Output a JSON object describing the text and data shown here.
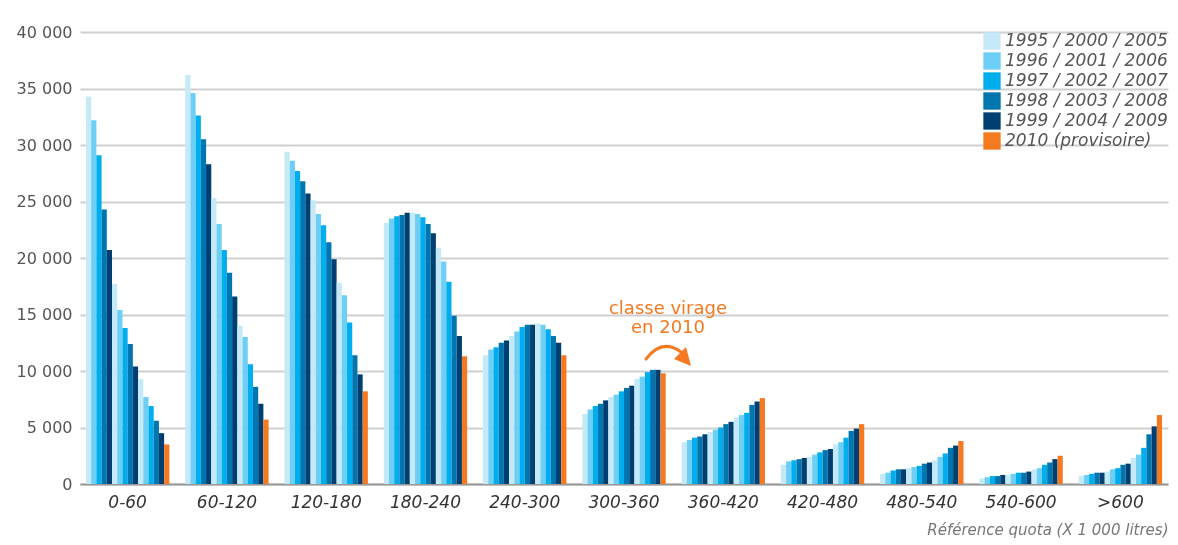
{
  "chart_data": {
    "type": "bar",
    "xlabel": "Référence quota (X 1 000 litres)",
    "categories": [
      "0-60",
      "60-120",
      "120-180",
      "180-240",
      "240-300",
      "300-360",
      "360-420",
      "420-480",
      "480-540",
      "540-600",
      ">600"
    ],
    "series": [
      {
        "name": "1995 / 2000 / 2005",
        "color": "#c6e9f8",
        "values": [
          34300,
          36200,
          29400,
          23100,
          11400,
          6200,
          3700,
          1700,
          900,
          500,
          700
        ]
      },
      {
        "name": "1996 / 2001 / 2006",
        "color": "#6dcff6",
        "values": [
          32200,
          34600,
          28600,
          23500,
          11900,
          6600,
          3900,
          2000,
          1000,
          600,
          800
        ]
      },
      {
        "name": "1997 / 2002 / 2007",
        "color": "#00aeef",
        "values": [
          29100,
          32600,
          27700,
          23700,
          12100,
          6900,
          4100,
          2100,
          1200,
          700,
          900
        ]
      },
      {
        "name": "1998 / 2003 / 2008",
        "color": "#0076b0",
        "values": [
          24300,
          30500,
          26800,
          23800,
          12500,
          7100,
          4200,
          2200,
          1300,
          700,
          1000
        ]
      },
      {
        "name": "1999 / 2004 / 2009",
        "color": "#003f72",
        "values": [
          20700,
          28300,
          25700,
          24000,
          12700,
          7400,
          4400,
          2300,
          1300,
          800,
          1000
        ]
      },
      {
        "color": "#c6e9f8",
        "values": [
          17700,
          25300,
          25100,
          24000,
          13100,
          7700,
          4600,
          2400,
          1400,
          800,
          1100
        ]
      },
      {
        "color": "#6dcff6",
        "values": [
          15400,
          23000,
          23900,
          23900,
          13500,
          7900,
          4800,
          2600,
          1500,
          900,
          1300
        ]
      },
      {
        "color": "#00aeef",
        "values": [
          13800,
          20700,
          22900,
          23600,
          13900,
          8200,
          5000,
          2800,
          1600,
          1000,
          1400
        ]
      },
      {
        "color": "#0076b0",
        "values": [
          12400,
          18700,
          21400,
          23000,
          14100,
          8500,
          5300,
          3000,
          1800,
          1000,
          1700
        ]
      },
      {
        "color": "#003f72",
        "values": [
          10400,
          16600,
          19900,
          22200,
          14100,
          8700,
          5500,
          3100,
          1900,
          1100,
          1800
        ]
      },
      {
        "color": "#c6e9f8",
        "values": [
          9300,
          14000,
          17800,
          20900,
          14200,
          9300,
          5900,
          3500,
          2100,
          1300,
          2300
        ]
      },
      {
        "color": "#6dcff6",
        "values": [
          7700,
          13000,
          16700,
          19700,
          14100,
          9500,
          6100,
          3700,
          2400,
          1400,
          2600
        ]
      },
      {
        "color": "#00aeef",
        "values": [
          6900,
          10600,
          14300,
          17900,
          13700,
          9900,
          6300,
          4100,
          2700,
          1700,
          3200
        ]
      },
      {
        "color": "#0076b0",
        "values": [
          5600,
          8600,
          11400,
          14900,
          13100,
          10100,
          7000,
          4700,
          3200,
          1900,
          4400
        ]
      },
      {
        "color": "#003f72",
        "values": [
          4500,
          7100,
          9700,
          13100,
          12500,
          10100,
          7300,
          4900,
          3400,
          2200,
          5100
        ]
      },
      {
        "name": "2010 (provisoire)",
        "color": "#f47920",
        "values": [
          3500,
          5700,
          8200,
          11300,
          11400,
          9800,
          7600,
          5300,
          3800,
          2500,
          6100
        ]
      }
    ],
    "ylim": [
      0,
      40000
    ],
    "yticks": [
      0,
      {
        "value": 5000,
        "label": "5 000"
      },
      {
        "value": 10000,
        "label": "10 000"
      },
      {
        "value": 15000,
        "label": "15 000"
      },
      {
        "value": 20000,
        "label": "20 000"
      },
      {
        "value": 25000,
        "label": "25 000"
      },
      {
        "value": 30000,
        "label": "30 000"
      },
      {
        "value": 35000,
        "label": "35 000"
      },
      {
        "value": 40000,
        "label": "40 000"
      }
    ],
    "grid": "y",
    "legend": "top right",
    "annotations": [
      "classe virage\nen 2010"
    ]
  }
}
